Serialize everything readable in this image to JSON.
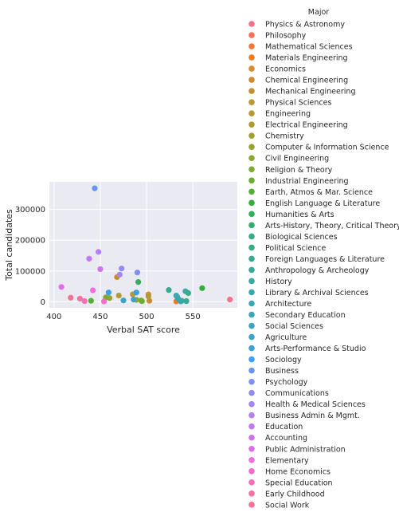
{
  "chart_data": {
    "type": "scatter",
    "xlabel": "Verbal SAT score",
    "ylabel": "Total candidates",
    "xlim": [
      395,
      598
    ],
    "ylim": [
      -20000,
      390000
    ],
    "xticks": [
      400,
      450,
      500,
      550
    ],
    "yticks": [
      0,
      100000,
      200000,
      300000
    ],
    "grid": true,
    "background": "#eaeaf2",
    "legend": {
      "title": "Major",
      "placement": "right-outside"
    },
    "series": [
      {
        "name": "Physics & Astronomy",
        "color": "#f77189",
        "points": [
          [
            590,
            7000
          ]
        ]
      },
      {
        "name": "Philosophy",
        "color": "#f6735a",
        "points": [
          [
            535,
            5000
          ]
        ]
      },
      {
        "name": "Mathematical Sciences",
        "color": "#f37738",
        "points": [
          [
            533,
            4000
          ]
        ]
      },
      {
        "name": "Materials Engineering",
        "color": "#f07b22",
        "points": [
          [
            532,
            1000
          ]
        ]
      },
      {
        "name": "Economics",
        "color": "#dc8932",
        "points": [
          [
            502,
            24000
          ]
        ]
      },
      {
        "name": "Chemical Engineering",
        "color": "#cf8b33",
        "points": [
          [
            503,
            3000
          ]
        ]
      },
      {
        "name": "Mechanical Engineering",
        "color": "#c58f31",
        "points": [
          [
            468,
            80000
          ]
        ]
      },
      {
        "name": "Physical Sciences",
        "color": "#bb9832",
        "points": [
          [
            485,
            24000
          ]
        ]
      },
      {
        "name": "Engineering",
        "color": "#b49b33",
        "points": [
          [
            470,
            20000
          ]
        ]
      },
      {
        "name": "Electrical Engineering",
        "color": "#ad9c32",
        "points": [
          [
            502,
            17000
          ]
        ]
      },
      {
        "name": "Chemistry",
        "color": "#a3a031",
        "points": [
          [
            494,
            4000
          ]
        ]
      },
      {
        "name": "Computer & Information Science",
        "color": "#98a331",
        "points": [
          [
            460,
            12000
          ]
        ]
      },
      {
        "name": "Civil Engineering",
        "color": "#8ca731",
        "points": [
          [
            489,
            6000
          ]
        ]
      },
      {
        "name": "Religion & Theory",
        "color": "#7daa32",
        "points": [
          [
            456,
            14000
          ]
        ]
      },
      {
        "name": "Industrial Engineering",
        "color": "#6aad32",
        "points": [
          [
            495,
            2000
          ]
        ]
      },
      {
        "name": "Earth, Atmos & Mar. Science",
        "color": "#50b131",
        "points": [
          [
            440,
            3000
          ]
        ]
      },
      {
        "name": "English Language & Literature",
        "color": "#34ae3b",
        "points": [
          [
            560,
            44000
          ]
        ]
      },
      {
        "name": "Humanities & Arts",
        "color": "#33ae5a",
        "points": [
          [
            491,
            64000
          ]
        ]
      },
      {
        "name": "Arts-History, Theory, Critical Theory",
        "color": "#34ad6e",
        "points": [
          [
            538,
            3000
          ]
        ]
      },
      {
        "name": "Biological Sciences",
        "color": "#35ac7d",
        "points": [
          [
            545,
            28000
          ]
        ]
      },
      {
        "name": "Political Science",
        "color": "#36ab88",
        "points": [
          [
            524,
            38000
          ]
        ]
      },
      {
        "name": "Foreign Languages & Literature",
        "color": "#37aa93",
        "points": [
          [
            543,
            2000
          ]
        ]
      },
      {
        "name": "Anthropology & Archeology",
        "color": "#37a99c",
        "points": [
          [
            534,
            10000
          ]
        ]
      },
      {
        "name": "History",
        "color": "#38a9a3",
        "points": [
          [
            542,
            34000
          ]
        ]
      },
      {
        "name": "Library & Archival Sciences",
        "color": "#38a8aa",
        "points": [
          [
            533,
            16000
          ]
        ]
      },
      {
        "name": "Architecture",
        "color": "#39a7b2",
        "points": [
          [
            537,
            1000
          ]
        ]
      },
      {
        "name": "Secondary Education",
        "color": "#3aa6b9",
        "points": [
          [
            532,
            20000
          ]
        ]
      },
      {
        "name": "Social Sciences",
        "color": "#3ba4c2",
        "points": [
          [
            475,
            4000
          ]
        ]
      },
      {
        "name": "Agriculture",
        "color": "#3ca2cb",
        "points": [
          [
            486,
            7000
          ]
        ]
      },
      {
        "name": "Arts-Performance & Studio",
        "color": "#3f9fd7",
        "points": [
          [
            489,
            30000
          ]
        ]
      },
      {
        "name": "Sociology",
        "color": "#3e9ded",
        "points": [
          [
            459,
            30000
          ]
        ]
      },
      {
        "name": "Business",
        "color": "#6a94f0",
        "points": [
          [
            444,
            369000
          ]
        ]
      },
      {
        "name": "Psychology",
        "color": "#8190f0",
        "points": [
          [
            490,
            95000
          ]
        ]
      },
      {
        "name": "Communications",
        "color": "#928cf0",
        "points": [
          [
            473,
            108000
          ]
        ]
      },
      {
        "name": "Health & Medical Sciences",
        "color": "#a487f0",
        "points": [
          [
            471,
            88000
          ]
        ]
      },
      {
        "name": "Business Admin & Mgmt.",
        "color": "#b382f0",
        "points": [
          [
            448,
            162000
          ]
        ]
      },
      {
        "name": "Education",
        "color": "#c27af0",
        "points": [
          [
            438,
            140000
          ]
        ]
      },
      {
        "name": "Accounting",
        "color": "#d072ee",
        "points": [
          [
            450,
            106000
          ]
        ]
      },
      {
        "name": "Public Administration",
        "color": "#e06de8",
        "points": [
          [
            408,
            48000
          ]
        ]
      },
      {
        "name": "Elementary",
        "color": "#f16de2",
        "points": [
          [
            442,
            37000
          ]
        ]
      },
      {
        "name": "Home Economics",
        "color": "#f36dca",
        "points": [
          [
            454,
            1000
          ]
        ]
      },
      {
        "name": "Special Education",
        "color": "#f46fb6",
        "points": [
          [
            433,
            2000
          ]
        ]
      },
      {
        "name": "Early Childhood",
        "color": "#f570a5",
        "points": [
          [
            428,
            10000
          ]
        ]
      },
      {
        "name": "Social Work",
        "color": "#f67096",
        "points": [
          [
            418,
            13000
          ]
        ]
      }
    ]
  }
}
